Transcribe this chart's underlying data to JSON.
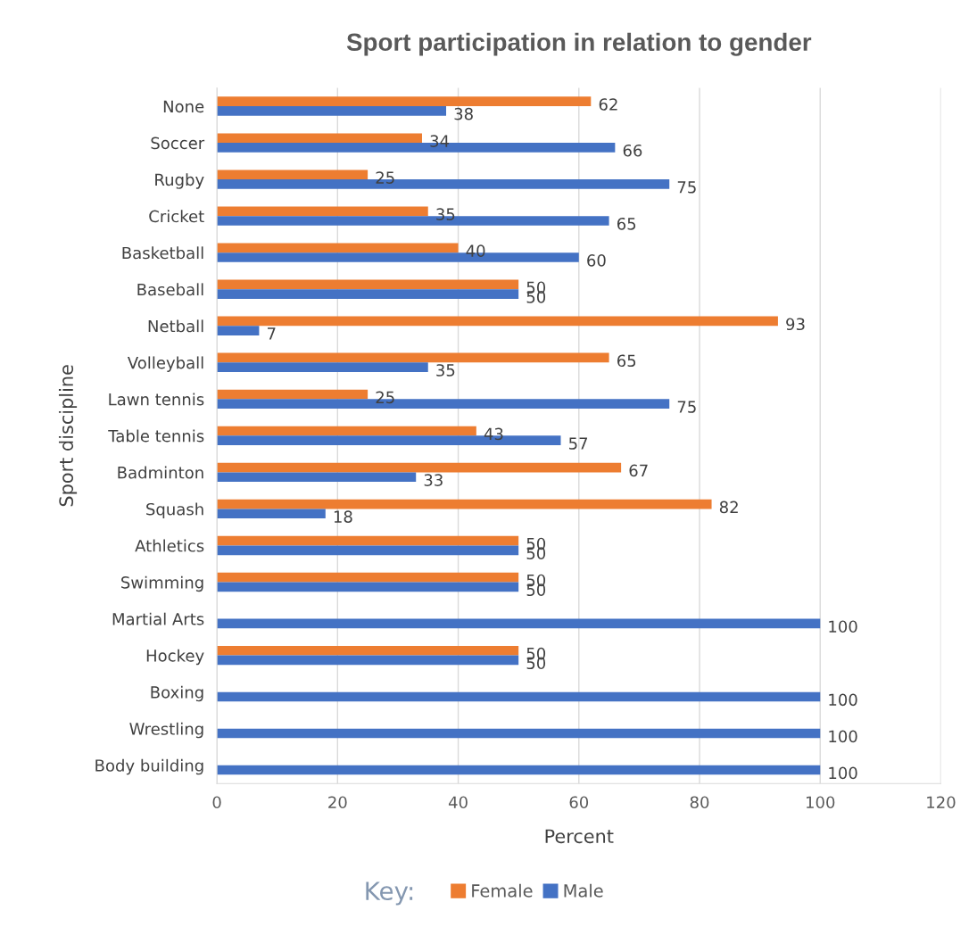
{
  "chart_data": {
    "type": "bar",
    "orientation": "horizontal",
    "title": "Sport participation in relation to gender",
    "xlabel": "Percent",
    "ylabel": "Sport discipline",
    "legend_title": "Key:",
    "categories": [
      "None",
      "Soccer",
      "Rugby",
      "Cricket",
      "Basketball",
      "Baseball",
      "Netball",
      "Volleyball",
      "Lawn tennis",
      "Table tennis",
      "Badminton",
      "Squash",
      "Athletics",
      "Swimming",
      "Martial Arts",
      "Hockey",
      "Boxing",
      "Wrestling",
      "Body building"
    ],
    "series": [
      {
        "name": "Female",
        "color": "#ed7d31",
        "values": [
          62,
          34,
          25,
          35,
          40,
          50,
          93,
          65,
          25,
          43,
          67,
          82,
          50,
          50,
          null,
          50,
          null,
          null,
          null
        ]
      },
      {
        "name": "Male",
        "color": "#4472c4",
        "values": [
          38,
          66,
          75,
          65,
          60,
          50,
          7,
          35,
          75,
          57,
          33,
          18,
          50,
          50,
          100,
          50,
          100,
          100,
          100
        ]
      }
    ],
    "xlim": [
      0,
      120
    ],
    "xticks": [
      0,
      20,
      40,
      60,
      80,
      100,
      120
    ],
    "grid": "x",
    "legend": "bottom",
    "data_labels": true
  }
}
